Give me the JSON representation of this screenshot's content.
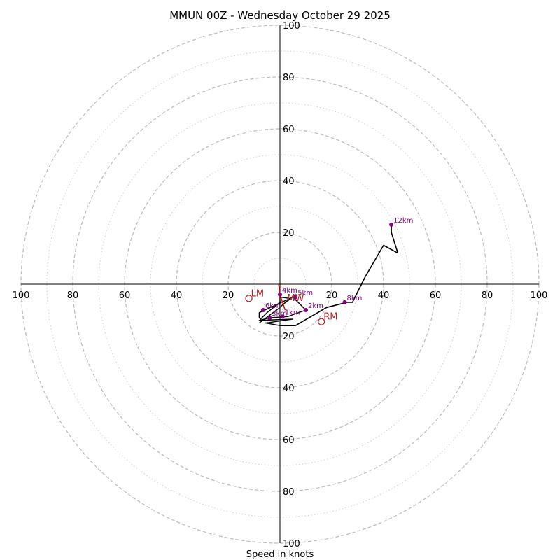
{
  "chart_data": {
    "type": "hodograph",
    "title": "MMUN 00Z - Wednesday October 29 2025",
    "xlabel": "Speed in knots",
    "units": "knots",
    "range": [
      -100,
      100
    ],
    "axis_ticks": [
      {
        "value": -100,
        "label": "100"
      },
      {
        "value": -80,
        "label": "80"
      },
      {
        "value": -60,
        "label": "60"
      },
      {
        "value": -40,
        "label": "40"
      },
      {
        "value": -20,
        "label": "20"
      },
      {
        "value": 20,
        "label": "20"
      },
      {
        "value": 40,
        "label": "40"
      },
      {
        "value": 60,
        "label": "60"
      },
      {
        "value": 80,
        "label": "80"
      },
      {
        "value": 100,
        "label": "100"
      }
    ],
    "rings_dashed": [
      20,
      40,
      60,
      80,
      100
    ],
    "rings_dotted": [
      10,
      30,
      50,
      70,
      90
    ],
    "hodograph_trace": {
      "name": "wind profile",
      "color": "#000000",
      "points": [
        {
          "u": 0,
          "v": -16
        },
        {
          "u": 6,
          "v": -16
        },
        {
          "u": 18,
          "v": -9
        },
        {
          "u": 26,
          "v": -7
        },
        {
          "u": 28,
          "v": -7
        },
        {
          "u": 33,
          "v": 3
        },
        {
          "u": 40,
          "v": 15
        },
        {
          "u": 45.5,
          "v": 12
        },
        {
          "u": 43,
          "v": 20
        },
        {
          "u": 43,
          "v": 23
        }
      ]
    },
    "low_trace": {
      "name": "low-level wind",
      "color": "#000000",
      "points": [
        {
          "u": 0,
          "v": -16
        },
        {
          "u": -5.5,
          "v": -15
        },
        {
          "u": 5,
          "v": -13.5
        },
        {
          "u": -8,
          "v": -14
        },
        {
          "u": -4,
          "v": -13
        },
        {
          "u": 3,
          "v": -12.5
        },
        {
          "u": 10,
          "v": -10
        },
        {
          "u": 6,
          "v": -6
        },
        {
          "u": 5,
          "v": -5
        },
        {
          "u": -8,
          "v": -11
        },
        {
          "u": -8,
          "v": -13
        },
        {
          "u": -7.5,
          "v": -13.5
        },
        {
          "u": -5,
          "v": -11
        },
        {
          "u": 0,
          "v": -7
        },
        {
          "u": 0,
          "v": -5
        },
        {
          "u": 4,
          "v": -5.5
        },
        {
          "u": 1,
          "v": -8
        },
        {
          "u": 0,
          "v": -9
        },
        {
          "u": -8,
          "v": -15
        }
      ]
    },
    "height_markers": [
      {
        "label": "1km",
        "u": 1,
        "v": -12.5
      },
      {
        "label": "2km",
        "u": 10,
        "v": -10
      },
      {
        "label": "3km",
        "u": -4,
        "v": -13
      },
      {
        "label": "4km",
        "u": 0,
        "v": -4
      },
      {
        "label": "5km",
        "u": 6,
        "v": -5
      },
      {
        "label": "6km",
        "u": -6.5,
        "v": -10
      },
      {
        "label": "8km",
        "u": 25,
        "v": -7
      },
      {
        "label": "12km",
        "u": 43,
        "v": 23
      }
    ],
    "storm_motions": [
      {
        "label": "LM",
        "u": -12,
        "v": -5.5
      },
      {
        "label": "RM",
        "u": 16,
        "v": -14.5
      },
      {
        "label": "MW",
        "u": 2,
        "v": -7.5
      }
    ],
    "shear_vector": {
      "color": "#dd0000",
      "points": [
        {
          "u": -0.5,
          "v": 0
        },
        {
          "u": 0,
          "v": -4
        },
        {
          "u": 2,
          "v": -10
        }
      ]
    }
  }
}
